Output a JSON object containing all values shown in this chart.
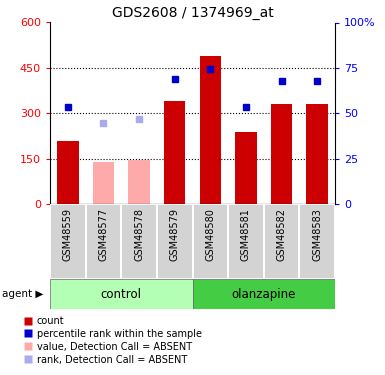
{
  "title": "GDS2608 / 1374969_at",
  "samples": [
    "GSM48559",
    "GSM48577",
    "GSM48578",
    "GSM48579",
    "GSM48580",
    "GSM48581",
    "GSM48582",
    "GSM48583"
  ],
  "bar_values": [
    210,
    140,
    148,
    340,
    490,
    240,
    330,
    330
  ],
  "bar_colors": [
    "#cc0000",
    "#ffaaaa",
    "#ffaaaa",
    "#cc0000",
    "#cc0000",
    "#cc0000",
    "#cc0000",
    "#cc0000"
  ],
  "absent_flags": [
    false,
    true,
    true,
    false,
    false,
    false,
    false,
    false
  ],
  "percentile_values": [
    320,
    270,
    280,
    415,
    447,
    320,
    408,
    408
  ],
  "percentile_absent": [
    false,
    true,
    true,
    false,
    false,
    false,
    false,
    false
  ],
  "ylim_left": [
    0,
    600
  ],
  "left_yticks": [
    0,
    150,
    300,
    450,
    600
  ],
  "right_yticks": [
    0,
    25,
    50,
    75,
    100
  ],
  "right_yticklabels": [
    "0",
    "25",
    "50",
    "75",
    "100%"
  ],
  "gridlines": [
    150,
    300,
    450
  ],
  "bar_color_present": "#cc0000",
  "bar_color_absent": "#ffaaaa",
  "square_color_present": "#0000cc",
  "square_color_absent": "#aaaaee",
  "title_fontsize": 10,
  "label_fontsize": 7,
  "tick_fontsize": 8,
  "legend_fontsize": 7
}
